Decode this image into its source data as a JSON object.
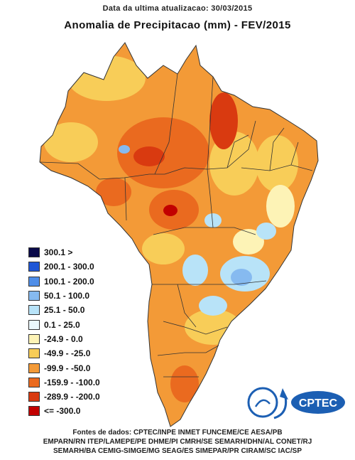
{
  "header": {
    "update_text": "Data da ultima atualizacao: 30/03/2015",
    "title": "Anomalia de Precipitacao (mm) - FEV/2015"
  },
  "legend": {
    "items": [
      {
        "label": "300.1 >",
        "color": "#0a0a4a"
      },
      {
        "label": "200.1 - 300.0",
        "color": "#1f56d6"
      },
      {
        "label": "100.1 - 200.0",
        "color": "#4f8ee8"
      },
      {
        "label": "50.1 - 100.0",
        "color": "#86baf0"
      },
      {
        "label": "25.1 - 50.0",
        "color": "#b8e3f8"
      },
      {
        "label": "0.1 - 25.0",
        "color": "#eaf7fb"
      },
      {
        "label": "-24.9 - 0.0",
        "color": "#fdf3b6"
      },
      {
        "label": "-49.9 - -25.0",
        "color": "#f8cd58"
      },
      {
        "label": "-99.9 - -50.0",
        "color": "#f39a37"
      },
      {
        "label": "-159.9 - -100.0",
        "color": "#ea6a1f"
      },
      {
        "label": "-289.9 - -200.0",
        "color": "#d93a10"
      },
      {
        "label": "<= -300.0",
        "color": "#c20000"
      }
    ]
  },
  "sources": {
    "line1": "Fontes de dados: CPTEC/INPE INMET FUNCEME/CE AESA/PB",
    "line2": "EMPARN/RN ITEP/LAMEPE/PE DHME/PI CMRH/SE SEMARH/DHN/AL CONET/RJ",
    "line3": "SEMARH/BA CEMIG-SIMGE/MG SEAG/ES SIMEPAR/PR CIRAM/SC IAC/SP"
  },
  "logo": {
    "text": "CPTEC",
    "colors": {
      "primary": "#1c5fb3",
      "accent": "#2f8ad8"
    }
  },
  "map": {
    "colors": {
      "base": "#f39a37",
      "light_orange": "#f8cd58",
      "pale": "#fdf3b6",
      "dark_orange": "#ea6a1f",
      "red": "#d93a10",
      "deep_red": "#c20000",
      "light_blue": "#b8e3f8",
      "mid_blue": "#86baf0",
      "border": "#333333"
    }
  }
}
